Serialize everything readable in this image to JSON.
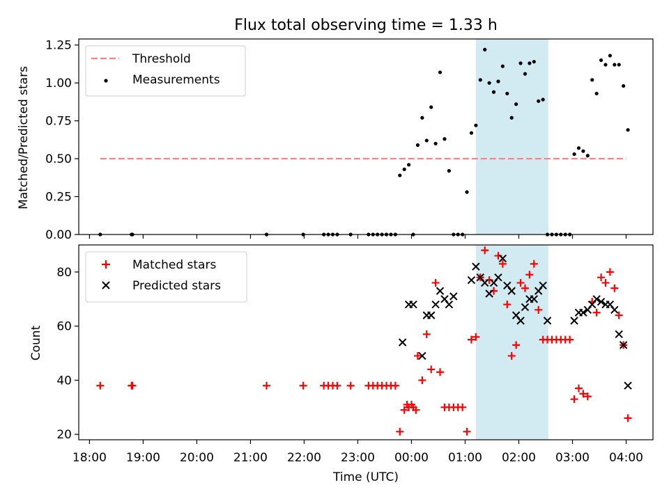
{
  "colors": {
    "threshold": "#ff8080",
    "measurement": "#000000",
    "matched": "#ff0000",
    "predicted": "#000000",
    "highlight": "#add8e6"
  },
  "chart_data": [
    {
      "type": "scatter",
      "title": "Flux total observing time = 1.33 h",
      "xlabel": "",
      "ylabel": "Matched/Predicted stars",
      "xlim": [
        "17:48",
        "04:30"
      ],
      "ylim": [
        0,
        1.29
      ],
      "yticks": [
        "0.00",
        "0.25",
        "0.50",
        "0.75",
        "1.00",
        "1.25"
      ],
      "highlight_span": [
        "01:12",
        "02:33"
      ],
      "legend": {
        "position": "top-left",
        "entries": [
          "Threshold",
          "Measurements"
        ]
      },
      "series": [
        {
          "name": "Threshold",
          "style": "dashed-line",
          "x": [
            "18:12",
            "04:00"
          ],
          "y": [
            0.5,
            0.5
          ]
        },
        {
          "name": "Measurements",
          "style": "dot",
          "x": [
            "18:12",
            "18:47",
            "18:48",
            "21:18",
            "21:59",
            "22:22",
            "22:27",
            "22:32",
            "22:37",
            "22:52",
            "23:12",
            "23:17",
            "23:22",
            "23:27",
            "23:32",
            "23:37",
            "23:42",
            "23:47",
            "23:52",
            "23:57",
            "00:02",
            "00:07",
            "00:12",
            "00:17",
            "00:22",
            "00:27",
            "00:32",
            "00:37",
            "00:42",
            "00:47",
            "00:52",
            "00:57",
            "01:02",
            "01:07",
            "01:12",
            "01:17",
            "01:22",
            "01:27",
            "01:32",
            "01:37",
            "01:42",
            "01:47",
            "01:52",
            "01:57",
            "02:02",
            "02:07",
            "02:12",
            "02:17",
            "02:22",
            "02:27",
            "02:32",
            "02:37",
            "02:42",
            "02:47",
            "02:52",
            "02:57",
            "03:02",
            "03:07",
            "03:12",
            "03:17",
            "03:22",
            "03:27",
            "03:32",
            "03:37",
            "03:42",
            "03:47",
            "03:52",
            "03:57",
            "04:02"
          ],
          "y": [
            0.0,
            0.0,
            0.0,
            0.0,
            0.0,
            0.0,
            0.0,
            0.0,
            0.0,
            0.0,
            0.0,
            0.0,
            0.0,
            0.0,
            0.0,
            0.0,
            0.0,
            0.39,
            0.43,
            0.46,
            0.0,
            0.59,
            0.77,
            0.62,
            0.84,
            0.6,
            1.07,
            0.63,
            0.42,
            0.0,
            0.0,
            0.0,
            0.28,
            0.67,
            0.72,
            1.02,
            1.22,
            1.0,
            0.94,
            1.01,
            1.11,
            0.93,
            0.77,
            0.86,
            1.13,
            1.06,
            1.13,
            1.14,
            0.88,
            0.89,
            0.0,
            0.0,
            0.0,
            0.0,
            0.0,
            0.0,
            0.53,
            0.57,
            0.55,
            0.52,
            1.02,
            0.93,
            1.15,
            1.12,
            1.18,
            1.12,
            1.12,
            0.98,
            0.69
          ]
        }
      ]
    },
    {
      "type": "scatter",
      "title": "",
      "xlabel": "Time (UTC)",
      "ylabel": "Count",
      "xlim": [
        "17:48",
        "04:30"
      ],
      "ylim": [
        18,
        90
      ],
      "yticks": [
        "20",
        "40",
        "60",
        "80"
      ],
      "xticks": [
        "18:00",
        "19:00",
        "20:00",
        "21:00",
        "22:00",
        "23:00",
        "00:00",
        "01:00",
        "02:00",
        "03:00",
        "04:00"
      ],
      "highlight_span": [
        "01:12",
        "02:33"
      ],
      "legend": {
        "position": "top-left",
        "entries": [
          "Matched stars",
          "Predicted stars"
        ]
      },
      "series": [
        {
          "name": "Matched stars",
          "style": "plus",
          "x": [
            "18:12",
            "18:47",
            "18:48",
            "21:18",
            "21:59",
            "22:22",
            "22:27",
            "22:32",
            "22:37",
            "22:52",
            "23:12",
            "23:17",
            "23:22",
            "23:27",
            "23:32",
            "23:37",
            "23:42",
            "23:47",
            "23:52",
            "23:55",
            "23:57",
            "00:00",
            "00:02",
            "00:05",
            "00:07",
            "00:12",
            "00:17",
            "00:22",
            "00:27",
            "00:32",
            "00:37",
            "00:42",
            "00:47",
            "00:52",
            "00:57",
            "01:02",
            "01:07",
            "01:12",
            "01:17",
            "01:22",
            "01:27",
            "01:32",
            "01:37",
            "01:42",
            "01:47",
            "01:52",
            "01:57",
            "02:02",
            "02:07",
            "02:12",
            "02:17",
            "02:22",
            "02:27",
            "02:32",
            "02:37",
            "02:42",
            "02:47",
            "02:52",
            "02:57",
            "03:02",
            "03:07",
            "03:12",
            "03:17",
            "03:22",
            "03:27",
            "03:32",
            "03:37",
            "03:42",
            "03:47",
            "03:52",
            "03:57",
            "04:02"
          ],
          "y": [
            38,
            38,
            38,
            38,
            38,
            38,
            38,
            38,
            38,
            38,
            38,
            38,
            38,
            38,
            38,
            38,
            38,
            21,
            29,
            31,
            30,
            31,
            30,
            29,
            49,
            40,
            57,
            44,
            76,
            43,
            30,
            30,
            30,
            30,
            30,
            21,
            55,
            56,
            78,
            88,
            77,
            73,
            86,
            83,
            68,
            49,
            53,
            76,
            74,
            79,
            83,
            66,
            55,
            55,
            55,
            55,
            55,
            55,
            55,
            33,
            37,
            35,
            34,
            69,
            65,
            78,
            76,
            80,
            74,
            64,
            53,
            26
          ]
        },
        {
          "name": "Predicted stars",
          "style": "x",
          "x": [
            "23:50",
            "23:57",
            "00:02",
            "00:12",
            "00:17",
            "00:22",
            "00:27",
            "00:32",
            "00:37",
            "00:42",
            "00:47",
            "01:07",
            "01:12",
            "01:17",
            "01:22",
            "01:27",
            "01:32",
            "01:37",
            "01:42",
            "01:47",
            "01:52",
            "01:57",
            "02:02",
            "02:07",
            "02:12",
            "02:17",
            "02:22",
            "02:27",
            "02:32",
            "03:02",
            "03:07",
            "03:12",
            "03:17",
            "03:22",
            "03:27",
            "03:32",
            "03:37",
            "03:42",
            "03:47",
            "03:52",
            "03:57",
            "04:02"
          ],
          "y": [
            54,
            68,
            68,
            49,
            64,
            64,
            68,
            73,
            70,
            68,
            71,
            77,
            82,
            78,
            76,
            72,
            76,
            78,
            85,
            75,
            73,
            64,
            62,
            67,
            70,
            70,
            73,
            75,
            62,
            62,
            65,
            65,
            66,
            68,
            70,
            69,
            68,
            68,
            66,
            57,
            53,
            38
          ]
        }
      ]
    }
  ]
}
